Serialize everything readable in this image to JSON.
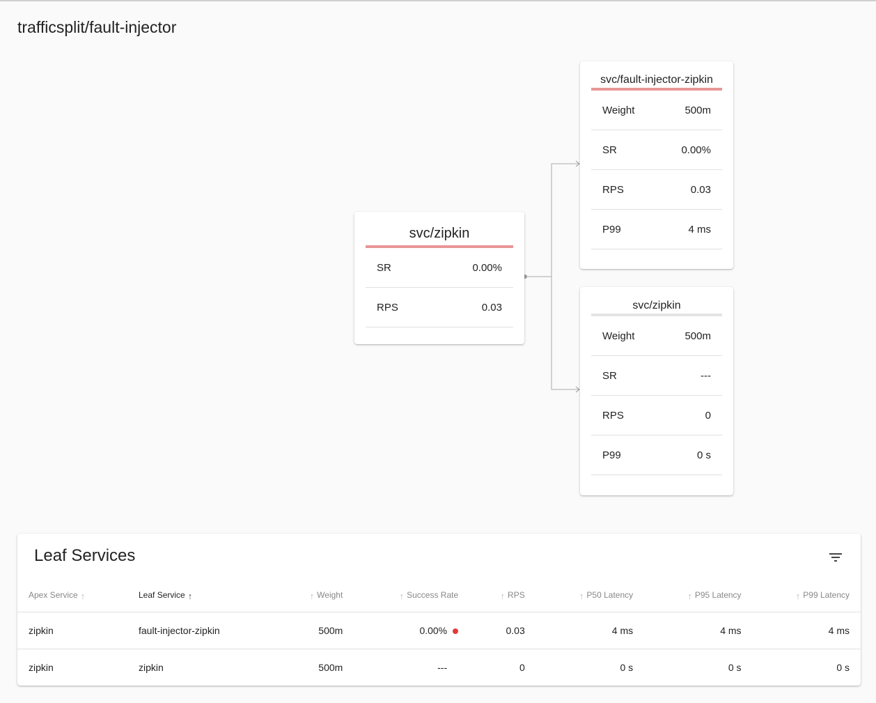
{
  "page": {
    "title": "trafficsplit/fault-injector"
  },
  "apex": {
    "title": "svc/zipkin",
    "rows": [
      {
        "label": "SR",
        "value": "0.00%"
      },
      {
        "label": "RPS",
        "value": "0.03"
      }
    ]
  },
  "leaves": [
    {
      "title": "svc/fault-injector-zipkin",
      "rows": [
        {
          "label": "Weight",
          "value": "500m"
        },
        {
          "label": "SR",
          "value": "0.00%"
        },
        {
          "label": "RPS",
          "value": "0.03"
        },
        {
          "label": "P99",
          "value": "4 ms"
        }
      ]
    },
    {
      "title": "svc/zipkin",
      "rows": [
        {
          "label": "Weight",
          "value": "500m"
        },
        {
          "label": "SR",
          "value": "---"
        },
        {
          "label": "RPS",
          "value": "0"
        },
        {
          "label": "P99",
          "value": "0 s"
        }
      ]
    }
  ],
  "colors": {
    "error_bar": "#e99696",
    "neutral_bar": "#e4e4e4",
    "error_dot": "#e23a3a",
    "edge": "#aaaaaa"
  },
  "table": {
    "title": "Leaf Services",
    "filter_icon": "filter-list-icon",
    "columns": [
      "Apex Service",
      "Leaf Service",
      "Weight",
      "Success Rate",
      "RPS",
      "P50 Latency",
      "P95 Latency",
      "P99 Latency"
    ],
    "active_sort_column": "Leaf Service",
    "rows": [
      {
        "apex": "zipkin",
        "leaf": "fault-injector-zipkin",
        "weight": "500m",
        "success_rate": "0.00%",
        "success_status": "error",
        "rps": "0.03",
        "p50": "4 ms",
        "p95": "4 ms",
        "p99": "4 ms"
      },
      {
        "apex": "zipkin",
        "leaf": "zipkin",
        "weight": "500m",
        "success_rate": "---",
        "success_status": "none",
        "rps": "0",
        "p50": "0 s",
        "p95": "0 s",
        "p99": "0 s"
      }
    ]
  }
}
